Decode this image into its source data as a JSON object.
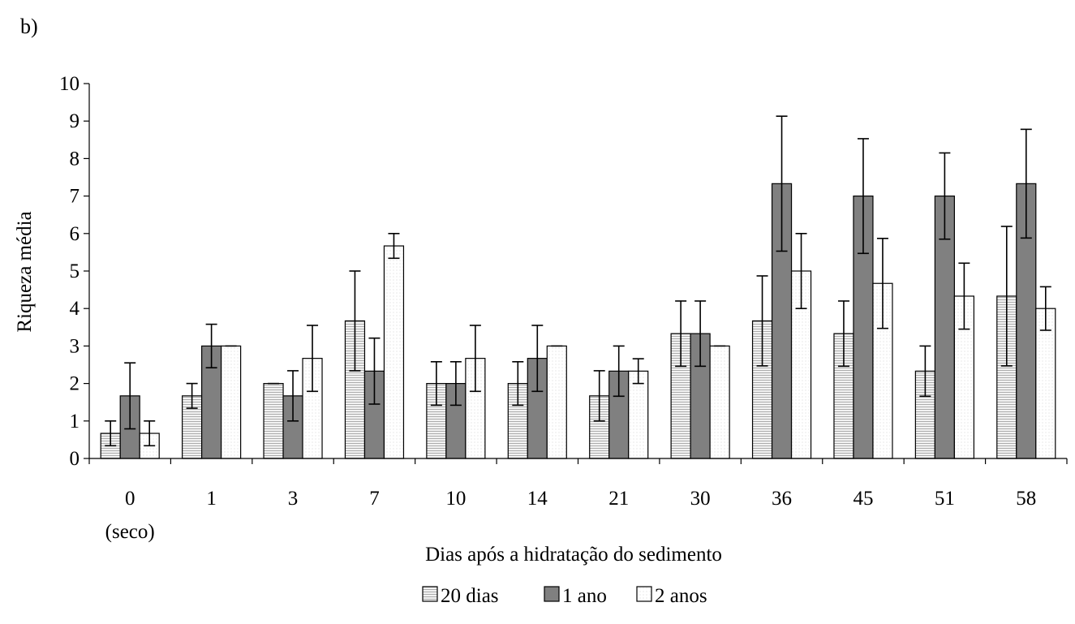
{
  "panel_label": "b)",
  "colors": {
    "series_20dias": "#e6e6e6",
    "series_1ano": "#808080",
    "series_2anos": "#ffffff",
    "stroke": "#000000"
  },
  "chart_data": {
    "type": "bar",
    "title": "",
    "xlabel": "Dias após a hidratação do sedimento",
    "ylabel": "Riqueza média",
    "ylim": [
      0,
      10
    ],
    "yticks": [
      0,
      1,
      2,
      3,
      4,
      5,
      6,
      7,
      8,
      9,
      10
    ],
    "categories": [
      "0",
      "1",
      "3",
      "7",
      "10",
      "14",
      "21",
      "30",
      "36",
      "45",
      "51",
      "58"
    ],
    "category_sublabels": [
      "(seco)",
      "",
      "",
      "",
      "",
      "",
      "",
      "",
      "",
      "",
      "",
      ""
    ],
    "legend_position": "bottom-center",
    "grid": false,
    "series": [
      {
        "name": "20 dias",
        "pattern": "hlines",
        "color": "#e6e6e6",
        "values": [
          0.67,
          1.67,
          2.0,
          3.67,
          2.0,
          2.0,
          1.67,
          3.33,
          3.67,
          3.33,
          2.33,
          4.33
        ],
        "errors": [
          0.33,
          0.33,
          0.0,
          1.33,
          0.58,
          0.58,
          0.67,
          0.87,
          1.2,
          0.87,
          0.67,
          1.86
        ]
      },
      {
        "name": "1 ano",
        "pattern": "solid",
        "color": "#808080",
        "values": [
          1.67,
          3.0,
          1.67,
          2.33,
          2.0,
          2.67,
          2.33,
          3.33,
          7.33,
          7.0,
          7.0,
          7.33
        ],
        "errors": [
          0.88,
          0.58,
          0.67,
          0.88,
          0.58,
          0.88,
          0.67,
          0.87,
          1.8,
          1.53,
          1.15,
          1.45
        ]
      },
      {
        "name": "2 anos",
        "pattern": "dotted",
        "color": "#ffffff",
        "values": [
          0.67,
          3.0,
          2.67,
          5.67,
          2.67,
          3.0,
          2.33,
          3.0,
          5.0,
          4.67,
          4.33,
          4.0
        ],
        "errors": [
          0.33,
          0.0,
          0.88,
          0.33,
          0.88,
          0.0,
          0.33,
          0.0,
          1.0,
          1.2,
          0.88,
          0.58
        ]
      }
    ]
  }
}
